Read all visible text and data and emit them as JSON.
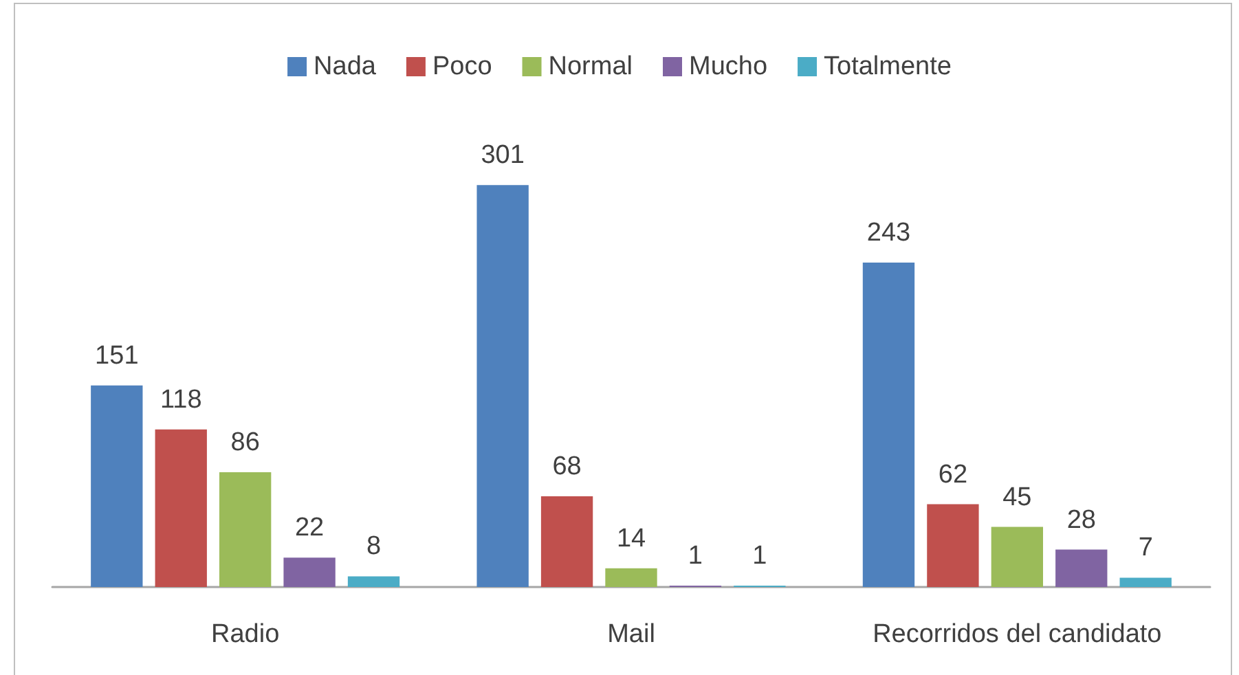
{
  "chart_data": {
    "type": "bar",
    "categories": [
      "Radio",
      "Mail",
      "Recorridos del candidato"
    ],
    "series": [
      {
        "name": "Nada",
        "color": "#4f81bd",
        "values": [
          151,
          301,
          243
        ]
      },
      {
        "name": "Poco",
        "color": "#c0504d",
        "values": [
          118,
          68,
          62
        ]
      },
      {
        "name": "Normal",
        "color": "#9bbb59",
        "values": [
          86,
          14,
          45
        ]
      },
      {
        "name": "Mucho",
        "color": "#8064a2",
        "values": [
          22,
          1,
          28
        ]
      },
      {
        "name": "Totalmente",
        "color": "#4bacc6",
        "values": [
          8,
          1,
          7
        ]
      }
    ],
    "data_labels": true,
    "legend": "top"
  }
}
